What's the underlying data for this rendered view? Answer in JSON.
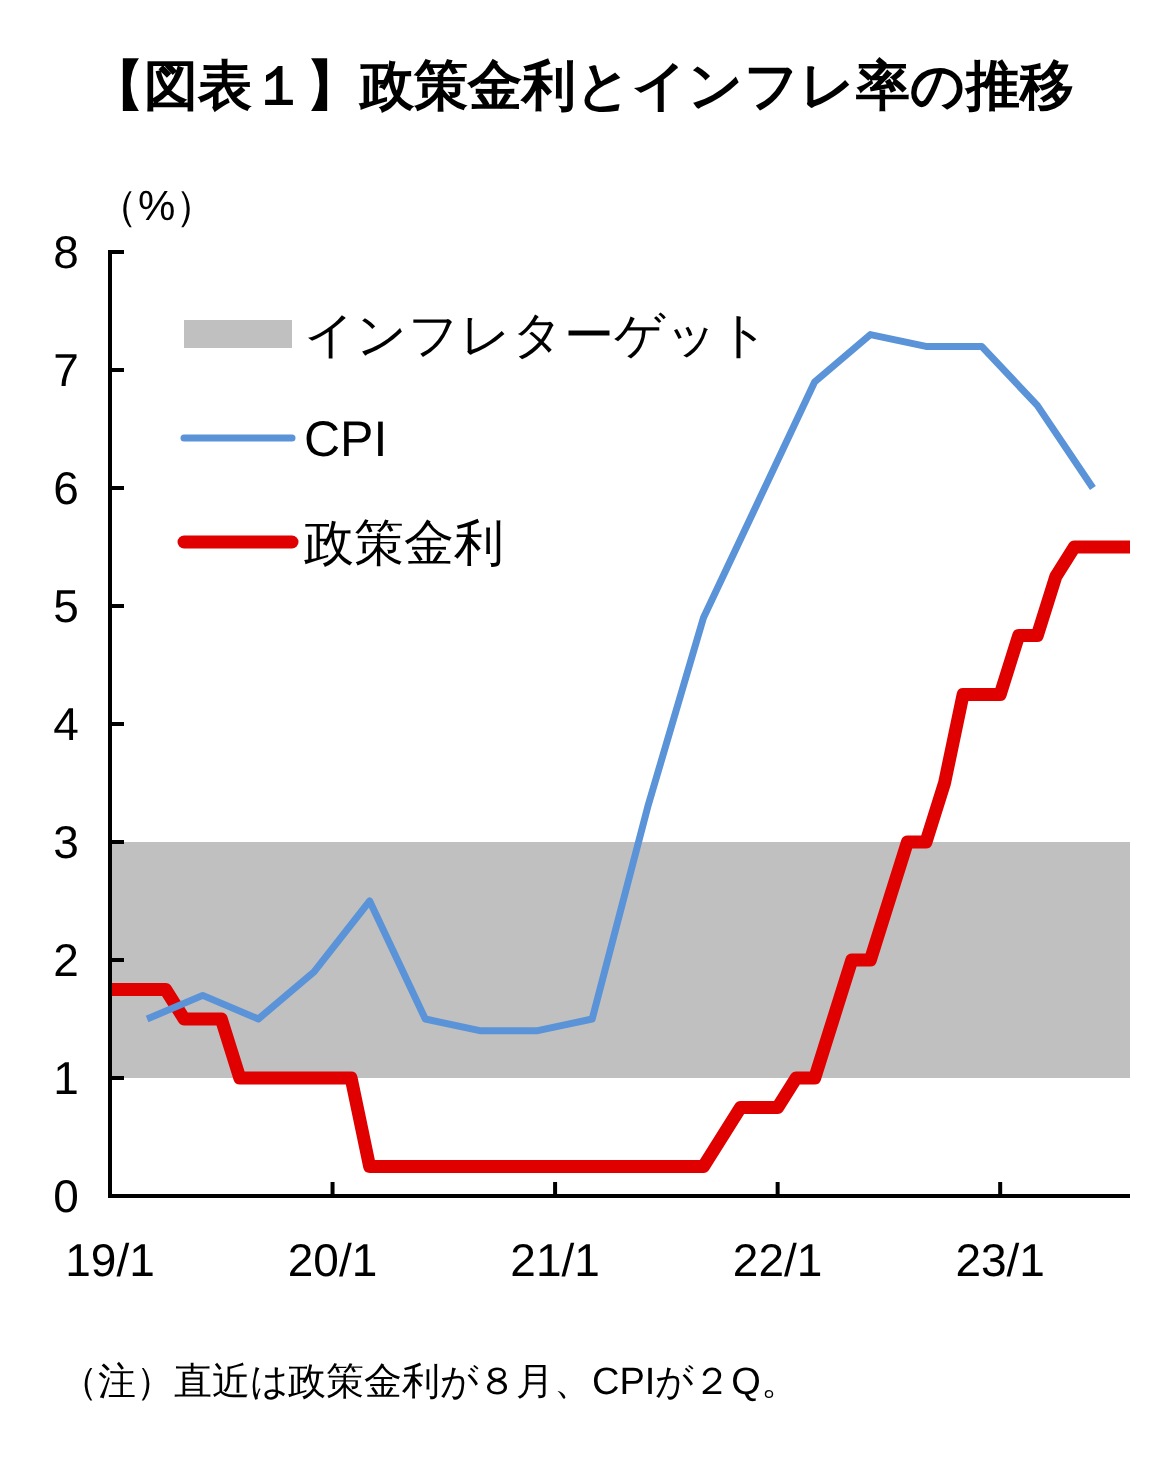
{
  "chart_data": {
    "type": "line",
    "title": "【図表１】政策金利とインフレ率の推移",
    "ylabel": "（%）",
    "categories": [
      "19/1",
      null,
      null,
      null,
      null,
      null,
      null,
      null,
      null,
      null,
      null,
      null,
      "20/1",
      null,
      null,
      null,
      null,
      null,
      null,
      null,
      null,
      null,
      null,
      null,
      "21/1",
      null,
      null,
      null,
      null,
      null,
      null,
      null,
      null,
      null,
      null,
      null,
      "22/1",
      null,
      null,
      null,
      null,
      null,
      null,
      null,
      null,
      null,
      null,
      null,
      "23/1",
      null,
      null,
      null,
      null,
      null,
      null,
      null
    ],
    "ylim": [
      0,
      8
    ],
    "yticks": [
      0,
      1,
      2,
      3,
      4,
      5,
      6,
      7,
      8
    ],
    "bands": [
      {
        "axis": "y",
        "from": 1,
        "to": 3,
        "label": "インフレターゲット",
        "color": "#c0c0c0"
      }
    ],
    "series": [
      {
        "name": "CPI",
        "color": "#5a93d8",
        "values": [
          null,
          null,
          1.5,
          null,
          null,
          1.7,
          null,
          null,
          1.5,
          null,
          null,
          1.9,
          null,
          null,
          2.5,
          null,
          null,
          1.5,
          null,
          null,
          1.4,
          null,
          null,
          1.4,
          null,
          null,
          1.5,
          null,
          null,
          3.3,
          null,
          null,
          4.9,
          null,
          null,
          5.9,
          null,
          null,
          6.9,
          null,
          null,
          7.3,
          null,
          null,
          7.2,
          null,
          null,
          7.2,
          null,
          null,
          6.7,
          null,
          null,
          6.0,
          null,
          null
        ]
      },
      {
        "name": "政策金利",
        "color": "#e00000",
        "values": [
          1.75,
          1.75,
          1.75,
          1.75,
          1.5,
          1.5,
          1.5,
          1.0,
          1.0,
          1.0,
          1.0,
          1.0,
          1.0,
          1.0,
          0.25,
          0.25,
          0.25,
          0.25,
          0.25,
          0.25,
          0.25,
          0.25,
          0.25,
          0.25,
          0.25,
          0.25,
          0.25,
          0.25,
          0.25,
          0.25,
          0.25,
          0.25,
          0.25,
          0.5,
          0.75,
          0.75,
          0.75,
          1.0,
          1.0,
          1.5,
          2.0,
          2.0,
          2.5,
          3.0,
          3.0,
          3.5,
          4.25,
          4.25,
          4.25,
          4.75,
          4.75,
          5.25,
          5.5,
          5.5,
          5.5,
          5.5
        ]
      }
    ],
    "legend": "top left",
    "grid": false,
    "marker": "none",
    "line_style": "solid",
    "annotations": [
      "（注）直近は政策金利が８月、CPIが２Q。"
    ]
  }
}
